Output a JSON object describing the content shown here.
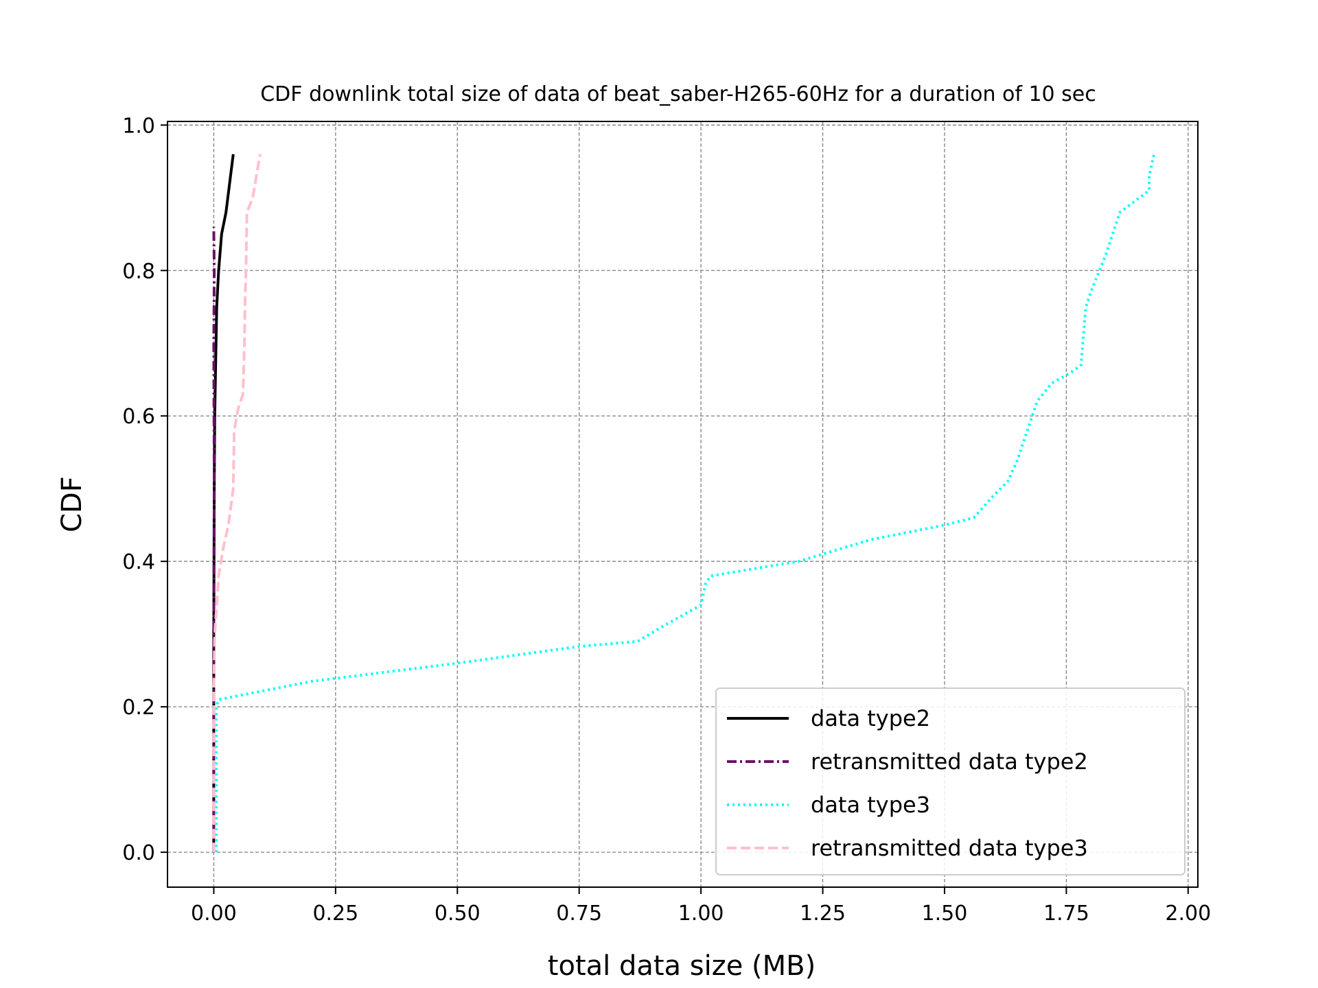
{
  "chart_data": {
    "type": "line",
    "title": "CDF downlink total size of data of beat_saber-H265-60Hz for a duration of 10 sec",
    "xlabel": "total data size (MB)",
    "ylabel": "CDF",
    "xlim": [
      -0.095,
      2.02
    ],
    "ylim": [
      -0.048,
      1.005
    ],
    "xticks": [
      0.0,
      0.25,
      0.5,
      0.75,
      1.0,
      1.25,
      1.5,
      1.75,
      2.0
    ],
    "xtick_labels": [
      "0.00",
      "0.25",
      "0.50",
      "0.75",
      "1.00",
      "1.25",
      "1.50",
      "1.75",
      "2.00"
    ],
    "yticks": [
      0.0,
      0.2,
      0.4,
      0.6,
      0.8,
      1.0
    ],
    "ytick_labels": [
      "0.0",
      "0.2",
      "0.4",
      "0.6",
      "0.8",
      "1.0"
    ],
    "grid": true,
    "legend_position": "lower-right",
    "series": [
      {
        "name": "data type2",
        "color": "#000000",
        "style": "solid",
        "x": [
          0.0,
          0.0,
          0.001,
          0.002,
          0.004,
          0.006,
          0.01,
          0.016,
          0.025,
          0.04
        ],
        "y": [
          0.0,
          0.3,
          0.5,
          0.6,
          0.68,
          0.75,
          0.8,
          0.85,
          0.88,
          0.96
        ]
      },
      {
        "name": "retransmitted data type2",
        "color": "#6b0f6b",
        "style": "dashdot",
        "x": [
          0.0,
          0.0,
          0.001,
          0.0,
          0.001,
          0.0
        ],
        "y": [
          0.0,
          0.3,
          0.5,
          0.7,
          0.8,
          0.86
        ]
      },
      {
        "name": "data type3",
        "color": "#00ffff",
        "style": "dotted",
        "x": [
          0.005,
          0.005,
          0.01,
          0.2,
          0.5,
          0.75,
          0.87,
          0.92,
          0.96,
          1.0,
          1.01,
          1.02,
          1.2,
          1.35,
          1.5,
          1.56,
          1.6,
          1.63,
          1.65,
          1.67,
          1.69,
          1.72,
          1.76,
          1.78,
          1.79,
          1.8,
          1.83,
          1.86,
          1.9,
          1.91,
          1.92,
          1.92,
          1.93
        ],
        "y": [
          0.0,
          0.2,
          0.21,
          0.235,
          0.26,
          0.283,
          0.29,
          0.31,
          0.325,
          0.34,
          0.37,
          0.38,
          0.4,
          0.43,
          0.45,
          0.46,
          0.49,
          0.51,
          0.54,
          0.58,
          0.62,
          0.645,
          0.66,
          0.67,
          0.75,
          0.77,
          0.82,
          0.88,
          0.9,
          0.905,
          0.91,
          0.93,
          0.96
        ]
      },
      {
        "name": "retransmitted data type3",
        "color": "#ffc0cb",
        "style": "dashed",
        "x": [
          0.0,
          0.0,
          0.002,
          0.005,
          0.01,
          0.02,
          0.03,
          0.04,
          0.042,
          0.05,
          0.06,
          0.063,
          0.064,
          0.066,
          0.068,
          0.08,
          0.095
        ],
        "y": [
          0.0,
          0.22,
          0.3,
          0.33,
          0.38,
          0.42,
          0.45,
          0.5,
          0.58,
          0.61,
          0.63,
          0.7,
          0.75,
          0.8,
          0.88,
          0.9,
          0.96
        ]
      }
    ]
  }
}
